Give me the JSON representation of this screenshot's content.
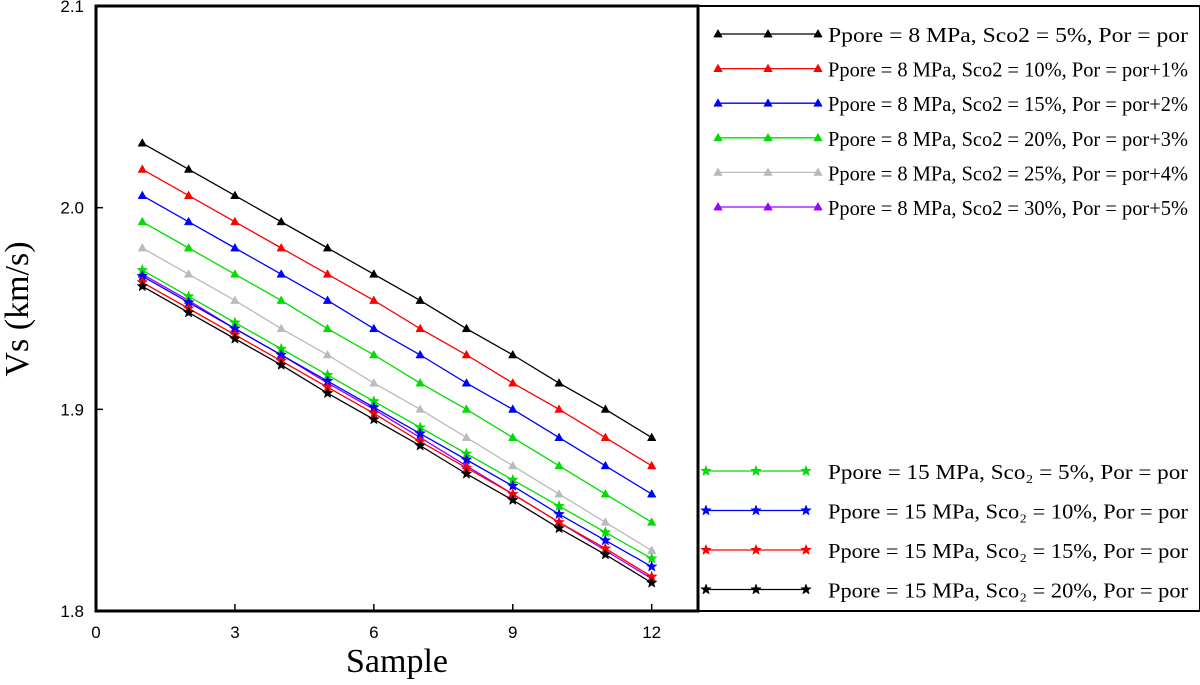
{
  "chart_data": {
    "type": "line",
    "title": "",
    "xlabel": "Sample",
    "ylabel": "Vs (km/s)",
    "xlim": [
      0,
      13
    ],
    "ylim": [
      1.8,
      2.1
    ],
    "xticks": [
      0,
      3,
      6,
      9,
      12
    ],
    "yticks": [
      1.8,
      1.9,
      2.0,
      2.1
    ],
    "x": [
      1,
      2,
      3,
      4,
      5,
      6,
      7,
      8,
      9,
      10,
      11,
      12
    ],
    "legend_groups": [
      {
        "placement": "top-right-outside",
        "series_indices": [
          0,
          1,
          2,
          3,
          4,
          5
        ]
      },
      {
        "placement": "bottom-right-outside",
        "series_indices": [
          6,
          7,
          8,
          9
        ]
      }
    ],
    "series": [
      {
        "name": "Ppore = 8 MPa, Sco2 = 5%, Por = por",
        "color": "#000000",
        "marker": "triangle",
        "values": [
          2.032,
          2.019,
          2.006,
          1.993,
          1.98,
          1.967,
          1.954,
          1.94,
          1.927,
          1.913,
          1.9,
          1.886
        ]
      },
      {
        "name": "Ppore = 8 MPa, Sco2 = 10%, Por = por+1%",
        "color": "#ff0000",
        "marker": "triangle",
        "values": [
          2.019,
          2.006,
          1.993,
          1.98,
          1.967,
          1.954,
          1.94,
          1.927,
          1.913,
          1.9,
          1.886,
          1.872
        ]
      },
      {
        "name": "Ppore = 8 MPa, Sco2 = 15%, Por = por+2%",
        "color": "#0000ff",
        "marker": "triangle",
        "values": [
          2.006,
          1.993,
          1.98,
          1.967,
          1.954,
          1.94,
          1.927,
          1.913,
          1.9,
          1.886,
          1.872,
          1.858
        ]
      },
      {
        "name": "Ppore = 8 MPa, Sco2 = 20%, Por = por+3%",
        "color": "#00dd00",
        "marker": "triangle",
        "values": [
          1.993,
          1.98,
          1.967,
          1.954,
          1.94,
          1.927,
          1.913,
          1.9,
          1.886,
          1.872,
          1.858,
          1.844
        ]
      },
      {
        "name": "Ppore = 8 MPa, Sco2 = 25%, Por = por+4%",
        "color": "#bbbbbb",
        "marker": "triangle",
        "values": [
          1.98,
          1.967,
          1.954,
          1.94,
          1.927,
          1.913,
          1.9,
          1.886,
          1.872,
          1.858,
          1.844,
          1.83
        ]
      },
      {
        "name": "Ppore = 8 MPa, Sco2 = 30%, Por = por+5%",
        "color": "#9900ff",
        "marker": "triangle",
        "values": [
          1.967,
          1.954,
          1.94,
          1.927,
          1.913,
          1.9,
          1.886,
          1.872,
          1.858,
          1.844,
          1.83,
          1.816
        ]
      },
      {
        "name": "Ppore = 15 MPa, Sco₂ = 5%, Por = por",
        "color": "#00dd00",
        "marker": "star",
        "values": [
          1.969,
          1.956,
          1.943,
          1.93,
          1.917,
          1.904,
          1.891,
          1.878,
          1.865,
          1.852,
          1.839,
          1.826
        ]
      },
      {
        "name": "Ppore = 15 MPa, Sco₂ = 10%, Por = por",
        "color": "#0000ff",
        "marker": "star",
        "values": [
          1.966,
          1.953,
          1.94,
          1.927,
          1.914,
          1.901,
          1.888,
          1.875,
          1.862,
          1.848,
          1.835,
          1.822
        ]
      },
      {
        "name": "Ppore = 15 MPa, Sco₂ = 15%, Por = por",
        "color": "#ff0000",
        "marker": "star",
        "values": [
          1.963,
          1.95,
          1.937,
          1.924,
          1.911,
          1.898,
          1.884,
          1.871,
          1.858,
          1.844,
          1.831,
          1.817
        ]
      },
      {
        "name": "Ppore = 15 MPa, Sco₂ = 20%, Por = por",
        "color": "#000000",
        "marker": "star",
        "values": [
          1.961,
          1.948,
          1.935,
          1.922,
          1.908,
          1.895,
          1.882,
          1.868,
          1.855,
          1.841,
          1.828,
          1.814
        ]
      }
    ]
  }
}
